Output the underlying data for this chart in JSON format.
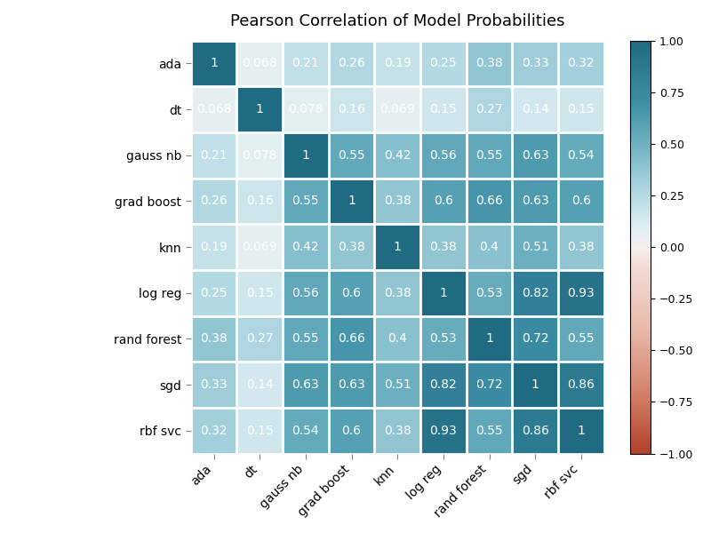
{
  "labels": [
    "ada",
    "dt",
    "gauss nb",
    "grad boost",
    "knn",
    "log reg",
    "rand forest",
    "sgd",
    "rbf svc"
  ],
  "matrix": [
    [
      1.0,
      0.068,
      0.21,
      0.26,
      0.19,
      0.25,
      0.38,
      0.33,
      0.32
    ],
    [
      0.068,
      1.0,
      0.078,
      0.16,
      0.069,
      0.15,
      0.27,
      0.14,
      0.15
    ],
    [
      0.21,
      0.078,
      1.0,
      0.55,
      0.42,
      0.56,
      0.55,
      0.63,
      0.54
    ],
    [
      0.26,
      0.16,
      0.55,
      1.0,
      0.38,
      0.6,
      0.66,
      0.63,
      0.6
    ],
    [
      0.19,
      0.069,
      0.42,
      0.38,
      1.0,
      0.38,
      0.4,
      0.51,
      0.38
    ],
    [
      0.25,
      0.15,
      0.56,
      0.6,
      0.38,
      1.0,
      0.53,
      0.82,
      0.93
    ],
    [
      0.38,
      0.27,
      0.55,
      0.66,
      0.4,
      0.53,
      1.0,
      0.72,
      0.55
    ],
    [
      0.33,
      0.14,
      0.63,
      0.63,
      0.51,
      0.82,
      0.72,
      1.0,
      0.86
    ],
    [
      0.32,
      0.15,
      0.54,
      0.6,
      0.38,
      0.93,
      0.55,
      0.86,
      1.0
    ]
  ],
  "title": "Pearson Correlation of Model Probabilities",
  "vmin": -1.0,
  "vmax": 1.0,
  "cmap_colors": [
    "#b2412a",
    "#c75b3e",
    "#d47b6a",
    "#e0a898",
    "#eecfc8",
    "#f5e8e4",
    "#d6e8ed",
    "#b2d4de",
    "#8bbfce",
    "#5fa3bc",
    "#3a8aaa",
    "#2a7090",
    "#1f5873"
  ],
  "figsize": [
    8.0,
    6.0
  ],
  "dpi": 100,
  "text_color": "white",
  "font_size_annot": 10,
  "font_size_title": 13,
  "font_size_tick": 10
}
